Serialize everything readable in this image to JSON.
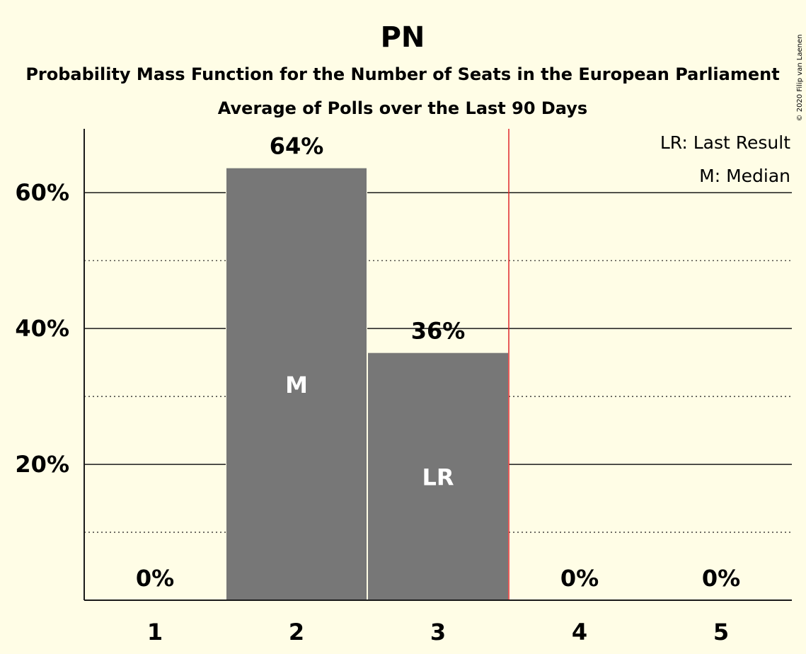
{
  "chart_data": {
    "type": "bar",
    "title": "PN",
    "subtitle": "Probability Mass Function for the Number of Seats in the European Parliament",
    "subtitle2": "Average of Polls over the Last 90 Days",
    "categories": [
      "1",
      "2",
      "3",
      "4",
      "5"
    ],
    "values": [
      0,
      63.6,
      36.4,
      0,
      0
    ],
    "value_labels": [
      "0%",
      "64%",
      "36%",
      "0%",
      "0%"
    ],
    "bar_markers": [
      "",
      "M",
      "LR",
      "",
      ""
    ],
    "y_ticks": [
      {
        "value": 20,
        "label": "20%"
      },
      {
        "value": 40,
        "label": "40%"
      },
      {
        "value": 60,
        "label": "60%"
      }
    ],
    "y_minor_ticks": [
      10,
      30,
      50
    ],
    "ylim": [
      0,
      69.4
    ],
    "last_result_after_category": "3",
    "grid": true,
    "legend_position": "top-right",
    "legend": [
      "LR: Last Result",
      "M: Median"
    ],
    "copyright": "© 2020 Filip van Laenen",
    "colors": {
      "background": "#fffde6",
      "bar": "#777777",
      "last_result_line": "#e0262b",
      "text": "#1a1a1a"
    }
  }
}
